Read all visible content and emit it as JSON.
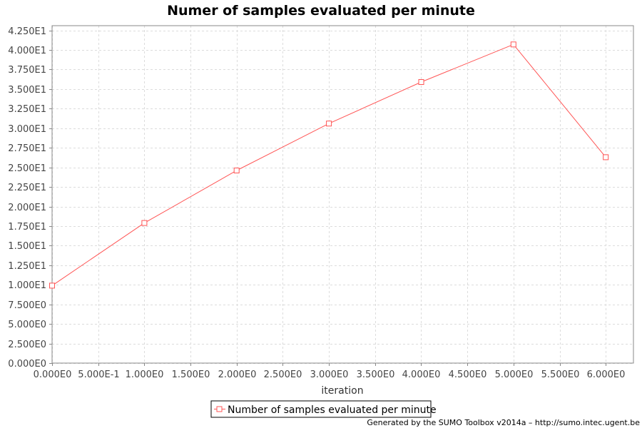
{
  "chart_data": {
    "type": "line",
    "title": "Numer of samples evaluated per minute",
    "xlabel": "iteration",
    "ylabel": "",
    "xlim": [
      0,
      6.3
    ],
    "ylim": [
      0,
      43.1
    ],
    "x_ticks": [
      0,
      0.5,
      1,
      1.5,
      2,
      2.5,
      3,
      3.5,
      4,
      4.5,
      5,
      5.5,
      6
    ],
    "x_tick_labels": [
      "0.000E0",
      "5.000E-1",
      "1.000E0",
      "1.500E0",
      "2.000E0",
      "2.500E0",
      "3.000E0",
      "3.500E0",
      "4.000E0",
      "4.500E0",
      "5.000E0",
      "5.500E0",
      "6.000E0"
    ],
    "y_ticks": [
      0,
      2.5,
      5,
      7.5,
      10,
      12.5,
      15,
      17.5,
      20,
      22.5,
      25,
      27.5,
      30,
      32.5,
      35,
      37.5,
      40,
      42.5
    ],
    "y_tick_labels": [
      "0.000E0",
      "2.500E0",
      "5.000E0",
      "7.500E0",
      "1.000E1",
      "1.250E1",
      "1.500E1",
      "1.750E1",
      "2.000E1",
      "2.250E1",
      "2.500E1",
      "2.750E1",
      "3.000E1",
      "3.250E1",
      "3.500E1",
      "3.750E1",
      "4.000E1",
      "4.250E1"
    ],
    "grid": true,
    "legend_position": "bottom-center",
    "series": [
      {
        "name": "Number of samples evaluated per minute",
        "color": "#ff5555",
        "marker": "square",
        "x": [
          0,
          1,
          2,
          3,
          4,
          5,
          6
        ],
        "values": [
          9.9,
          17.9,
          24.6,
          30.6,
          35.9,
          40.7,
          26.3
        ]
      }
    ]
  },
  "footer": "Generated by the SUMO Toolbox v2014a – http://sumo.intec.ugent.be"
}
